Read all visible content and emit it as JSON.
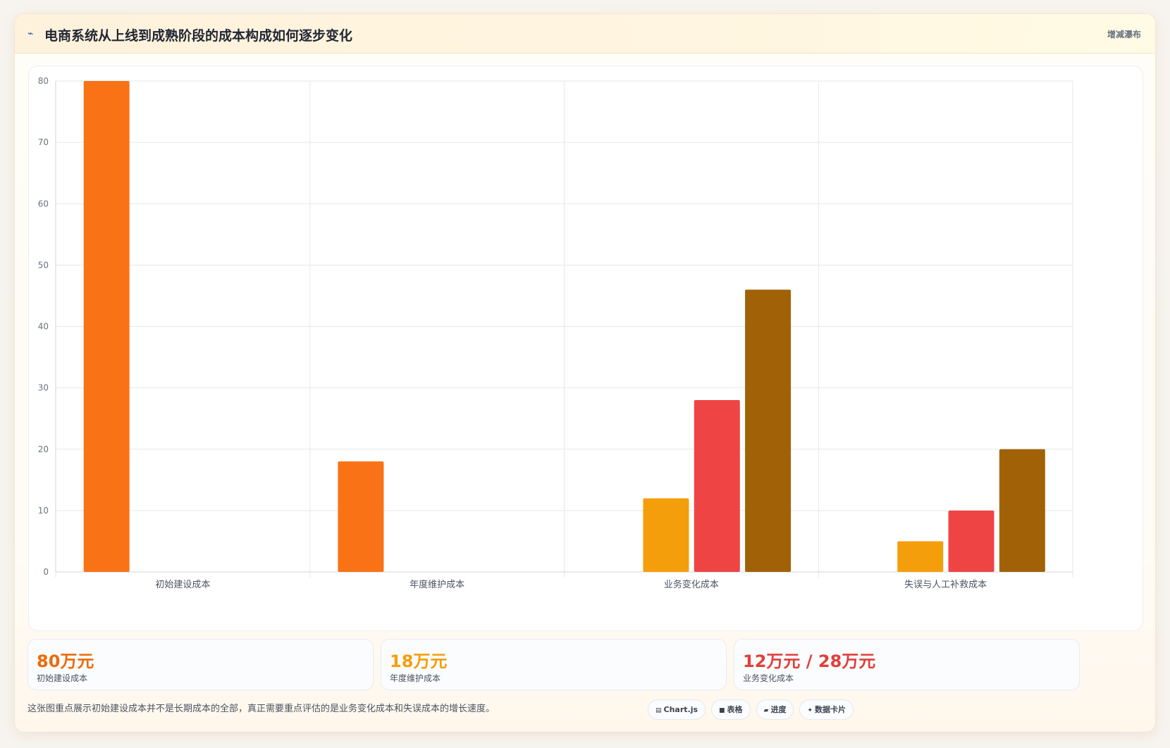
{
  "header": {
    "icon": "⌁",
    "title": "电商系统从上线到成熟阶段的成本构成如何逐步变化",
    "tag": "增减瀑布"
  },
  "chart_data": {
    "type": "bar",
    "categories": [
      "初始建设成本",
      "年度维护成本",
      "业务变化成本",
      "失误与人工补救成本"
    ],
    "ylim": [
      0,
      80
    ],
    "yticks": [
      0,
      10,
      20,
      30,
      40,
      50,
      60,
      70,
      80
    ],
    "grid": true,
    "series": [
      {
        "color": "#f97316",
        "values": [
          80,
          18,
          null,
          null
        ]
      },
      {
        "color": "#f59e0b",
        "values": [
          null,
          null,
          12,
          5
        ]
      },
      {
        "color": "#ef4444",
        "values": [
          null,
          null,
          28,
          10
        ]
      },
      {
        "color": "#a16207",
        "values": [
          null,
          null,
          46,
          20
        ]
      }
    ]
  },
  "stats": [
    {
      "value": "80万元",
      "label": "初始建设成本",
      "color": "#ea6c0c"
    },
    {
      "value": "18万元",
      "label": "年度维护成本",
      "color": "#f59e0b"
    },
    {
      "value": "12万元 / 28万元",
      "label": "业务变化成本",
      "color": "#e0403b"
    }
  ],
  "note": "这张图重点展示初始建设成本并不是长期成本的全部，真正需要重点评估的是业务变化成本和失误成本的增长速度。",
  "chips": [
    {
      "icon": "▤",
      "label": "Chart.js"
    },
    {
      "icon": "■",
      "label": "表格"
    },
    {
      "icon": "▰",
      "label": "进度"
    },
    {
      "icon": "✦",
      "label": "数据卡片"
    }
  ]
}
